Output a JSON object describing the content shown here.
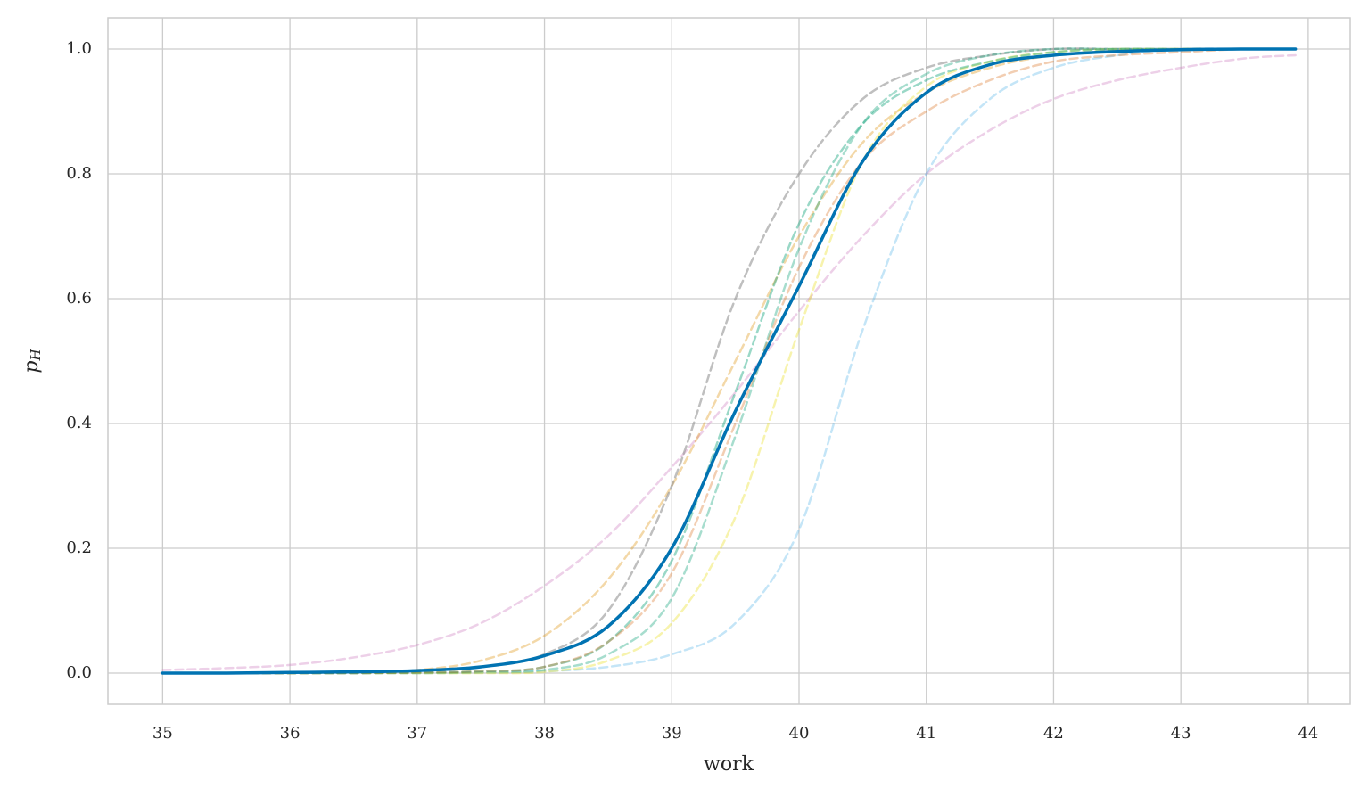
{
  "chart_data": {
    "type": "line",
    "xlabel": "work",
    "ylabel": {
      "text": "p",
      "subscript": "H"
    },
    "x": [
      35,
      35.5,
      36,
      36.5,
      37,
      37.5,
      38,
      38.5,
      39,
      39.5,
      40,
      40.5,
      41,
      41.5,
      42,
      42.5,
      43,
      43.5,
      43.9
    ],
    "xlim": [
      34.57,
      44.33
    ],
    "ylim": [
      -0.05,
      1.05
    ],
    "xticks": [
      35,
      36,
      37,
      38,
      39,
      40,
      41,
      42,
      43,
      44
    ],
    "yticks": [
      {
        "value": 0,
        "label": "0.0"
      },
      0.2,
      0.4,
      0.6,
      0.8,
      {
        "value": 1,
        "label": "1.0"
      }
    ],
    "grid": true,
    "series": [
      {
        "color": "#cc78bc",
        "linestyle": "dashed",
        "alpha": 0.35,
        "values": [
          0.005,
          0.008,
          0.013,
          0.025,
          0.045,
          0.08,
          0.14,
          0.22,
          0.33,
          0.45,
          0.58,
          0.7,
          0.8,
          0.87,
          0.92,
          0.95,
          0.97,
          0.985,
          0.99
        ]
      },
      {
        "color": "#56b4e9",
        "linestyle": "dashed",
        "alpha": 0.35,
        "values": [
          0,
          0,
          0,
          0,
          0,
          0.001,
          0.003,
          0.01,
          0.03,
          0.08,
          0.23,
          0.55,
          0.8,
          0.92,
          0.97,
          0.99,
          1,
          1,
          1
        ]
      },
      {
        "color": "#de8f05",
        "linestyle": "dashed",
        "alpha": 0.35,
        "values": [
          0,
          0,
          0,
          0.002,
          0.005,
          0.02,
          0.06,
          0.15,
          0.3,
          0.5,
          0.7,
          0.85,
          0.93,
          0.97,
          0.99,
          0.997,
          1,
          1,
          1
        ]
      },
      {
        "color": "#949494",
        "linestyle": "dashed",
        "alpha": 0.6,
        "values": [
          0,
          0,
          0,
          0.001,
          0.003,
          0.01,
          0.03,
          0.1,
          0.3,
          0.6,
          0.8,
          0.92,
          0.97,
          0.99,
          1,
          1,
          1,
          1,
          1
        ]
      },
      {
        "color": "#029e73",
        "linestyle": "dashed",
        "alpha": 0.35,
        "values": [
          0,
          0,
          0,
          0,
          0,
          0.001,
          0.005,
          0.03,
          0.12,
          0.38,
          0.68,
          0.88,
          0.96,
          0.99,
          1,
          1,
          1,
          1,
          1
        ]
      },
      {
        "color": "#ece133",
        "linestyle": "dashed",
        "alpha": 0.4,
        "values": [
          0,
          0,
          0,
          0,
          0,
          0,
          0.002,
          0.02,
          0.08,
          0.25,
          0.55,
          0.82,
          0.94,
          0.98,
          0.995,
          1,
          1,
          1,
          1
        ]
      },
      {
        "color": "#029e73",
        "linestyle": "dashed",
        "alpha": 0.4,
        "values": [
          0,
          0,
          0,
          0,
          0.001,
          0.003,
          0.01,
          0.05,
          0.18,
          0.45,
          0.72,
          0.88,
          0.95,
          0.98,
          0.995,
          1,
          1,
          1,
          1
        ]
      },
      {
        "color": "#d55e00",
        "linestyle": "dashed",
        "alpha": 0.3,
        "values": [
          0,
          0,
          0,
          0,
          0.001,
          0.003,
          0.01,
          0.05,
          0.16,
          0.4,
          0.65,
          0.82,
          0.9,
          0.95,
          0.98,
          0.99,
          0.995,
          1,
          1
        ]
      },
      {
        "color": "#0173b2",
        "linestyle": "solid",
        "alpha": 1,
        "values": [
          0,
          0,
          0.001,
          0.002,
          0.004,
          0.01,
          0.028,
          0.075,
          0.2,
          0.42,
          0.62,
          0.82,
          0.93,
          0.975,
          0.99,
          0.996,
          0.999,
          1,
          1
        ]
      }
    ]
  }
}
